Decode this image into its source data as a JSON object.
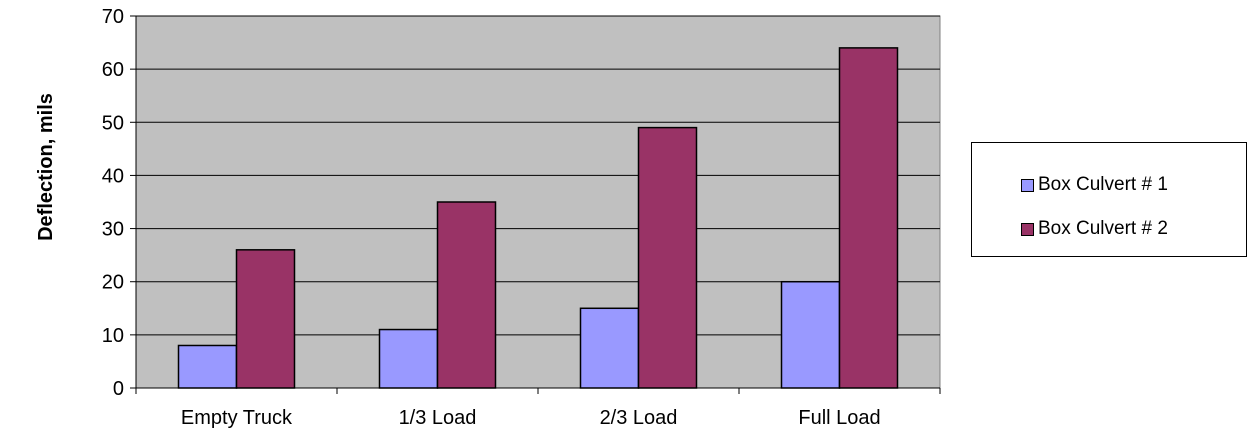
{
  "chart_data": {
    "type": "bar",
    "categories": [
      "Empty Truck",
      "1/3 Load",
      "2/3 Load",
      "Full Load"
    ],
    "series": [
      {
        "name": "Box Culvert # 1",
        "values": [
          8,
          11,
          15,
          20
        ],
        "color": "#9999ff"
      },
      {
        "name": "Box Culvert # 2",
        "values": [
          26,
          35,
          49,
          64
        ],
        "color": "#993366"
      }
    ],
    "ylabel": "Deflection, mils",
    "xlabel": "",
    "ylim": [
      0,
      70
    ],
    "yticks": [
      0,
      10,
      20,
      30,
      40,
      50,
      60,
      70
    ],
    "grid": true,
    "plot_background": "#c0c0c0",
    "legend_position": "right"
  }
}
